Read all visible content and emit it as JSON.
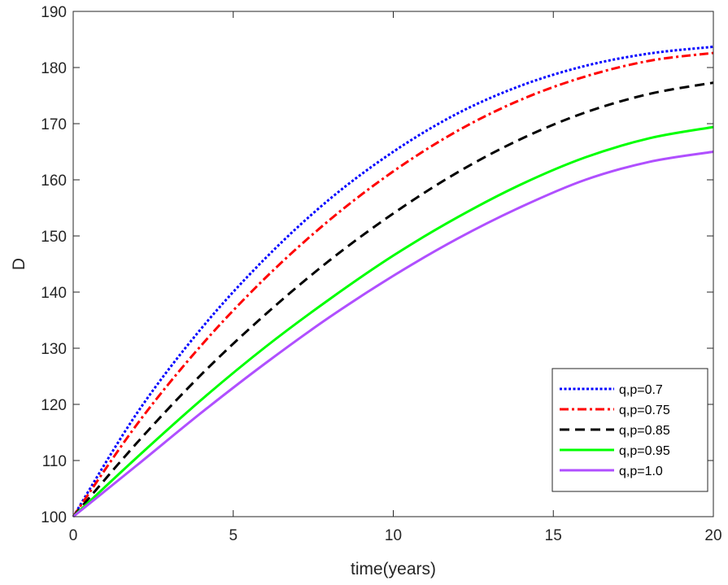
{
  "chart_data": {
    "type": "line",
    "title": "",
    "xlabel": "time(years)",
    "ylabel": "D",
    "xlim": [
      0,
      20
    ],
    "ylim": [
      100,
      190
    ],
    "xticks": [
      0,
      5,
      10,
      15,
      20
    ],
    "yticks": [
      100,
      110,
      120,
      130,
      140,
      150,
      160,
      170,
      180,
      190
    ],
    "grid": false,
    "legend_position": "bottom-right",
    "x": [
      0,
      2,
      4,
      6,
      8,
      10,
      12,
      14,
      16,
      18,
      20
    ],
    "series": [
      {
        "name": "q,p=0.7",
        "color": "#0000ff",
        "style": "dotted",
        "values": [
          100,
          118.5,
          133.5,
          146.0,
          156.5,
          165.0,
          171.8,
          176.8,
          180.3,
          182.5,
          183.7
        ]
      },
      {
        "name": "q,p=0.75",
        "color": "#ff0000",
        "style": "dashdot",
        "values": [
          100,
          116.5,
          130.5,
          142.5,
          152.8,
          161.5,
          168.7,
          174.3,
          178.4,
          181.2,
          182.6
        ]
      },
      {
        "name": "q,p=0.85",
        "color": "#000000",
        "style": "dashed",
        "values": [
          100,
          113.2,
          125.3,
          136.0,
          145.6,
          154.0,
          161.3,
          167.3,
          172.0,
          175.3,
          177.3
        ]
      },
      {
        "name": "q,p=0.95",
        "color": "#00ff00",
        "style": "solid",
        "values": [
          100,
          110.6,
          120.8,
          130.2,
          138.7,
          146.5,
          153.3,
          159.2,
          164.0,
          167.4,
          169.4
        ]
      },
      {
        "name": "q,p=1.0",
        "color": "#b04fff",
        "style": "solid",
        "values": [
          100,
          109.2,
          118.5,
          127.3,
          135.5,
          142.9,
          149.5,
          155.2,
          160.0,
          163.2,
          165.0
        ]
      }
    ]
  }
}
